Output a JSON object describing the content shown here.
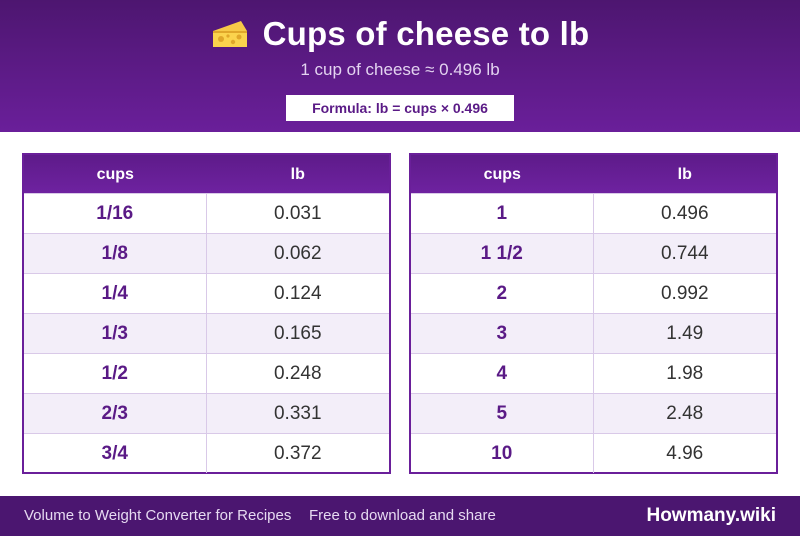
{
  "header": {
    "title": "Cups of cheese to lb",
    "subtitle": "1 cup of cheese ≈ 0.496 lb",
    "formula": "Formula: lb = cups × 0.496",
    "icon": "cheese-icon"
  },
  "tables": {
    "left": {
      "col1": "cups",
      "col2": "lb",
      "rows": [
        {
          "cups": "1/16",
          "lb": "0.031"
        },
        {
          "cups": "1/8",
          "lb": "0.062"
        },
        {
          "cups": "1/4",
          "lb": "0.124"
        },
        {
          "cups": "1/3",
          "lb": "0.165"
        },
        {
          "cups": "1/2",
          "lb": "0.248"
        },
        {
          "cups": "2/3",
          "lb": "0.331"
        },
        {
          "cups": "3/4",
          "lb": "0.372"
        }
      ]
    },
    "right": {
      "col1": "cups",
      "col2": "lb",
      "rows": [
        {
          "cups": "1",
          "lb": "0.496"
        },
        {
          "cups": "1 1/2",
          "lb": "0.744"
        },
        {
          "cups": "2",
          "lb": "0.992"
        },
        {
          "cups": "3",
          "lb": "1.49"
        },
        {
          "cups": "4",
          "lb": "1.98"
        },
        {
          "cups": "5",
          "lb": "2.48"
        },
        {
          "cups": "10",
          "lb": "4.96"
        }
      ]
    }
  },
  "footer": {
    "left": "Volume to Weight Converter for Recipes",
    "mid": "Free to download and share",
    "brand": "Howmany.wiki"
  },
  "colors": {
    "brand_purple": "#6a1f9a",
    "header_dark": "#4d1670",
    "row_alt": "#f3eef9"
  }
}
